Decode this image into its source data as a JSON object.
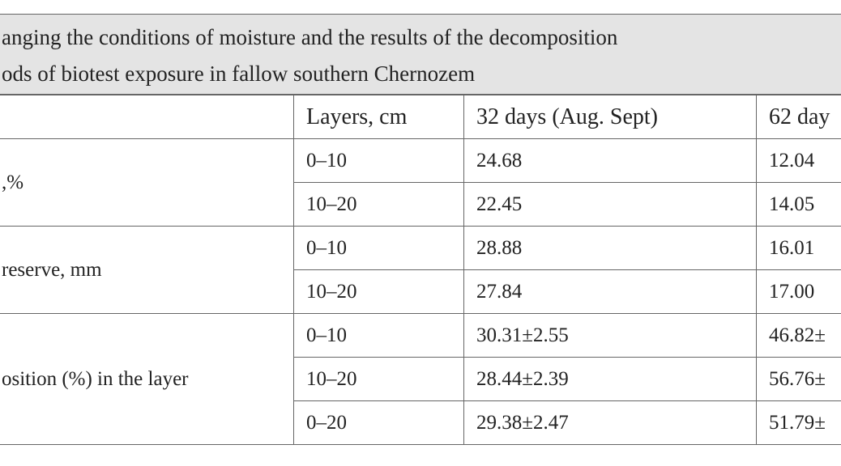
{
  "title": {
    "lines": [
      "anging the conditions of moisture and the results of the decomposition",
      "ods of biotest exposure in fallow southern Chernozem"
    ]
  },
  "table": {
    "header": [
      "Layers, cm",
      "32 days (Aug. Sept)",
      "62 day"
    ],
    "groups": [
      {
        "label": ",%",
        "rows": [
          [
            "0–10",
            "24.68",
            "12.04"
          ],
          [
            "10–20",
            "22.45",
            "14.05"
          ]
        ]
      },
      {
        "label": "reserve, mm",
        "rows": [
          [
            "0–10",
            "28.88",
            "16.01"
          ],
          [
            "10–20",
            "27.84",
            "17.00"
          ]
        ]
      },
      {
        "label": "osition (%) in the layer",
        "rows": [
          [
            "0–10",
            "30.31±2.55",
            "46.82±"
          ],
          [
            "10–20",
            "28.44±2.39",
            "56.76±"
          ],
          [
            "0–20",
            "29.38±2.47",
            "51.79±"
          ]
        ]
      }
    ]
  }
}
